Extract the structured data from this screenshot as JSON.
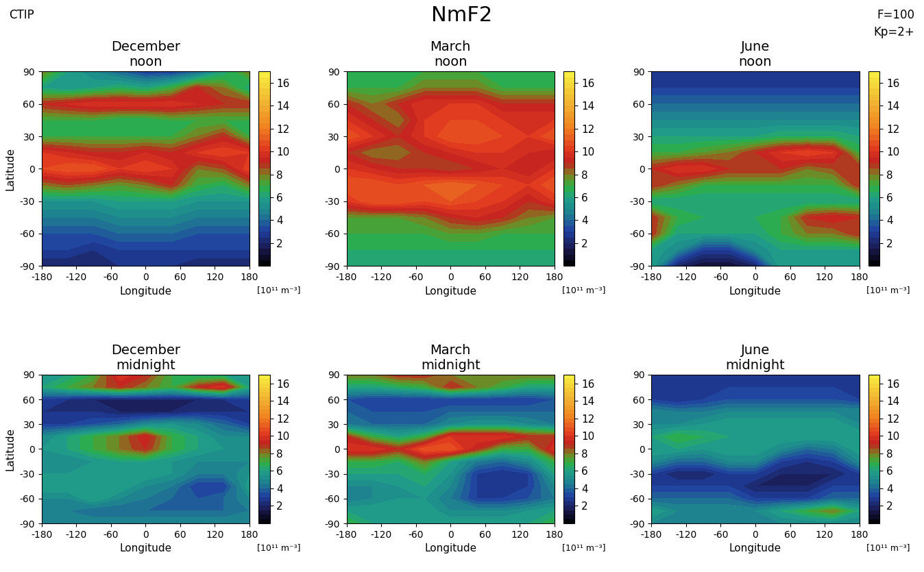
{
  "figure": {
    "title": "NmF2",
    "annotations": [
      "CTIP",
      "F=100",
      "Kp=2+"
    ]
  },
  "chart_data": [
    {
      "type": "contour",
      "title": "December\nnoon",
      "xlabel": "Longitude",
      "ylabel": "Latitude",
      "x": [
        -180,
        -135,
        -90,
        -45,
        0,
        45,
        90,
        135,
        180
      ],
      "y": [
        -90,
        -75,
        -60,
        -45,
        -30,
        -15,
        0,
        15,
        30,
        45,
        60,
        75,
        90
      ],
      "cells": [
        [
          2,
          2,
          2,
          2.5,
          2.5,
          2.5,
          2,
          2,
          2
        ],
        [
          3,
          3,
          2.5,
          3,
          3,
          3,
          3,
          3,
          3
        ],
        [
          3.5,
          3.5,
          3.5,
          4,
          4,
          4,
          3.5,
          3.5,
          3.5
        ],
        [
          4.5,
          4.5,
          4.5,
          5,
          5,
          5,
          4.5,
          4.5,
          4.5
        ],
        [
          5.5,
          5.5,
          5.5,
          6,
          6,
          6,
          5.5,
          5.5,
          5.5
        ],
        [
          8,
          8.5,
          8,
          7.5,
          8,
          9,
          7,
          6.5,
          8
        ],
        [
          10.5,
          11,
          11,
          10,
          10.5,
          10,
          8,
          8.5,
          10.5
        ],
        [
          10,
          9.5,
          9,
          9,
          9.5,
          9,
          10,
          10.5,
          10
        ],
        [
          7,
          7,
          7,
          7,
          7,
          7,
          8,
          9,
          7
        ],
        [
          7,
          7,
          7,
          6.5,
          6.5,
          7,
          7,
          7,
          7
        ],
        [
          9,
          9.5,
          10,
          10,
          10,
          10,
          9.5,
          9,
          9
        ],
        [
          6,
          5.5,
          6,
          6.5,
          6,
          7,
          9,
          8,
          6
        ],
        [
          8,
          6,
          5,
          4,
          3,
          3,
          4,
          6,
          8
        ]
      ],
      "xlim": [
        -180,
        180
      ],
      "ylim": [
        -90,
        90
      ],
      "xticks": [
        -180,
        -120,
        -60,
        0,
        60,
        120,
        180
      ],
      "yticks": [
        -90,
        -60,
        -30,
        0,
        30,
        60,
        90
      ],
      "colorbar": {
        "label": "[10¹¹ m⁻³]",
        "range": [
          0,
          17
        ],
        "ticks": [
          2,
          4,
          6,
          8,
          10,
          12,
          14,
          16
        ]
      }
    },
    {
      "type": "contour",
      "title": "March\nnoon",
      "xlabel": "Longitude",
      "x": [
        -180,
        -135,
        -90,
        -45,
        0,
        45,
        90,
        135,
        180
      ],
      "y": [
        -90,
        -75,
        -60,
        -45,
        -30,
        -15,
        0,
        15,
        30,
        45,
        60,
        75,
        90
      ],
      "cells": [
        [
          6,
          6,
          6,
          6,
          6,
          6,
          6,
          6,
          6
        ],
        [
          6.5,
          6.5,
          6.5,
          6.5,
          6.5,
          6.5,
          6.5,
          6.5,
          6.5
        ],
        [
          7,
          7,
          7,
          7,
          7.5,
          7.5,
          7,
          7,
          7
        ],
        [
          7.5,
          7.5,
          7.5,
          8,
          9,
          9.5,
          9,
          8,
          7.5
        ],
        [
          10,
          11,
          11,
          10.5,
          11,
          10.5,
          10,
          9,
          10
        ],
        [
          11,
          11,
          10.5,
          11,
          11.5,
          11,
          10.5,
          10,
          11
        ],
        [
          10,
          9.5,
          9,
          9,
          8.5,
          9,
          9.5,
          9,
          10
        ],
        [
          9,
          8,
          8,
          9,
          9.5,
          10,
          10,
          9.5,
          9
        ],
        [
          11,
          10,
          9,
          10,
          11,
          11,
          10.5,
          10,
          11
        ],
        [
          10,
          9,
          8,
          10,
          10.5,
          10.5,
          10,
          10,
          10
        ],
        [
          9,
          8,
          9,
          10,
          10,
          10,
          9,
          9,
          9
        ],
        [
          7,
          7,
          7,
          8,
          8,
          8,
          7,
          7,
          7
        ],
        [
          7,
          7,
          7,
          7,
          7,
          7,
          7,
          7,
          7
        ]
      ],
      "xlim": [
        -180,
        180
      ],
      "ylim": [
        -90,
        90
      ],
      "xticks": [
        -180,
        -120,
        -60,
        0,
        60,
        120,
        180
      ],
      "yticks": [
        -90,
        -60,
        -30,
        0,
        30,
        60,
        90
      ],
      "colorbar": {
        "label": "[10¹¹ m⁻³]",
        "range": [
          0,
          17
        ],
        "ticks": [
          2,
          4,
          6,
          8,
          10,
          12,
          14,
          16
        ]
      }
    },
    {
      "type": "contour",
      "title": "June\nnoon",
      "xlabel": "Longitude",
      "x": [
        -180,
        -135,
        -90,
        -45,
        0,
        45,
        90,
        135,
        180
      ],
      "y": [
        -90,
        -75,
        -60,
        -45,
        -30,
        -15,
        0,
        15,
        30,
        45,
        60,
        75,
        90
      ],
      "cells": [
        [
          6,
          2,
          1,
          1,
          2,
          6,
          6,
          6,
          6
        ],
        [
          6,
          5,
          3,
          3,
          5,
          6,
          6,
          6,
          6
        ],
        [
          9,
          6,
          6,
          6,
          6,
          7,
          8,
          8,
          9
        ],
        [
          9,
          7,
          6.5,
          6.5,
          6.5,
          7,
          9,
          9.5,
          9
        ],
        [
          6,
          6,
          6,
          6,
          6,
          6,
          6,
          6,
          6
        ],
        [
          9,
          8,
          7,
          7,
          7,
          7,
          7,
          7,
          9
        ],
        [
          9,
          10,
          10,
          9,
          9,
          9,
          8,
          8.5,
          9
        ],
        [
          7,
          7,
          7.5,
          8,
          9,
          10,
          10.5,
          10,
          7
        ],
        [
          6,
          6,
          6,
          6,
          6,
          6.5,
          6.5,
          6.5,
          6
        ],
        [
          5,
          5,
          5,
          5,
          5,
          5,
          5,
          5,
          5
        ],
        [
          4,
          4,
          4,
          4,
          4,
          4,
          4,
          4,
          4
        ],
        [
          3,
          3,
          3,
          3,
          3,
          3,
          3,
          3,
          3
        ],
        [
          2.5,
          2.5,
          2.5,
          2.5,
          2.5,
          2.5,
          2.5,
          2.5,
          2.5
        ]
      ],
      "xlim": [
        -180,
        180
      ],
      "ylim": [
        -90,
        90
      ],
      "xticks": [
        -180,
        -120,
        -60,
        0,
        60,
        120,
        180
      ],
      "yticks": [
        -90,
        -60,
        -30,
        0,
        30,
        60,
        90
      ],
      "colorbar": {
        "label": "[10¹¹ m⁻³]",
        "range": [
          0,
          17
        ],
        "ticks": [
          2,
          4,
          6,
          8,
          10,
          12,
          14,
          16
        ]
      }
    },
    {
      "type": "contour",
      "title": "December\nmidnight",
      "xlabel": "Longitude",
      "ylabel": "Latitude",
      "x": [
        -180,
        -135,
        -90,
        -45,
        0,
        45,
        90,
        135,
        180
      ],
      "y": [
        -90,
        -75,
        -60,
        -45,
        -30,
        -15,
        0,
        15,
        30,
        45,
        60,
        75,
        90
      ],
      "cells": [
        [
          5,
          5,
          5,
          5,
          5,
          5,
          5,
          5,
          5
        ],
        [
          4.5,
          4.5,
          4,
          4,
          4,
          4,
          4,
          4,
          4.5
        ],
        [
          5,
          5,
          6,
          5,
          4.5,
          4,
          3.5,
          4,
          5
        ],
        [
          6,
          6,
          6,
          6,
          5,
          4.5,
          3,
          3,
          6
        ],
        [
          5.5,
          5.5,
          6,
          6,
          6,
          5.5,
          4.5,
          4.5,
          5.5
        ],
        [
          5,
          5,
          5.5,
          6,
          6,
          5.5,
          5,
          5,
          5
        ],
        [
          5.5,
          6,
          7,
          8,
          9,
          7,
          6,
          5.5,
          5.5
        ],
        [
          5,
          6,
          7,
          8,
          9.5,
          7,
          6,
          5,
          5
        ],
        [
          3,
          3,
          3.5,
          4,
          5,
          5.5,
          5,
          4,
          3
        ],
        [
          2.5,
          2.5,
          2.5,
          2,
          2,
          2,
          2.5,
          2.5,
          2.5
        ],
        [
          3,
          2.5,
          2,
          2,
          2,
          2,
          2,
          2.5,
          3
        ],
        [
          6,
          7,
          8,
          9,
          8,
          7,
          9,
          10,
          6
        ],
        [
          6,
          6,
          7,
          10,
          9,
          7,
          6,
          6,
          6
        ]
      ],
      "xlim": [
        -180,
        180
      ],
      "ylim": [
        -90,
        90
      ],
      "xticks": [
        -180,
        -120,
        -60,
        0,
        60,
        120,
        180
      ],
      "yticks": [
        -90,
        -60,
        -30,
        0,
        30,
        60,
        90
      ],
      "colorbar": {
        "label": "[10¹¹ m⁻³]",
        "range": [
          0,
          17
        ],
        "ticks": [
          2,
          4,
          6,
          8,
          10,
          12,
          14,
          16
        ]
      }
    },
    {
      "type": "contour",
      "title": "March\nmidnight",
      "xlabel": "Longitude",
      "x": [
        -180,
        -135,
        -90,
        -45,
        0,
        45,
        90,
        135,
        180
      ],
      "y": [
        -90,
        -75,
        -60,
        -45,
        -30,
        -15,
        0,
        15,
        30,
        45,
        60,
        75,
        90
      ],
      "cells": [
        [
          7,
          6,
          6,
          6,
          6,
          6,
          6,
          6,
          7
        ],
        [
          6,
          6,
          6,
          6,
          5,
          5,
          5,
          5.5,
          6
        ],
        [
          4.5,
          5,
          5.5,
          5.5,
          4.5,
          3,
          3,
          3.5,
          4.5
        ],
        [
          5,
          5,
          5.5,
          6,
          5,
          3,
          2.5,
          3,
          5
        ],
        [
          6,
          6,
          6,
          6.5,
          5.5,
          3,
          2.5,
          3,
          6
        ],
        [
          7,
          7,
          6.5,
          8,
          6,
          4.5,
          4,
          5,
          7
        ],
        [
          10,
          10,
          9,
          11,
          11,
          9,
          7,
          7,
          10
        ],
        [
          9,
          7,
          6,
          7,
          10,
          10,
          10,
          9,
          9
        ],
        [
          4.5,
          4,
          4,
          4,
          5,
          5.5,
          5.5,
          5,
          4.5
        ],
        [
          4,
          3.5,
          3.5,
          3.5,
          4,
          4,
          4,
          4,
          4
        ],
        [
          3.5,
          3,
          3,
          3,
          3,
          3,
          3,
          3,
          3.5
        ],
        [
          6,
          6,
          6.5,
          7,
          9,
          8,
          7,
          6,
          6
        ],
        [
          8,
          8,
          9,
          9,
          8,
          8,
          8,
          8,
          8
        ]
      ],
      "xlim": [
        -180,
        180
      ],
      "ylim": [
        -90,
        90
      ],
      "xticks": [
        -180,
        -120,
        -60,
        0,
        60,
        120,
        180
      ],
      "yticks": [
        -90,
        -60,
        -30,
        0,
        30,
        60,
        90
      ],
      "colorbar": {
        "label": "[10¹¹ m⁻³]",
        "range": [
          0,
          17
        ],
        "ticks": [
          2,
          4,
          6,
          8,
          10,
          12,
          14,
          16
        ]
      }
    },
    {
      "type": "contour",
      "title": "June\nmidnight",
      "xlabel": "Longitude",
      "x": [
        -180,
        -135,
        -90,
        -45,
        0,
        45,
        90,
        135,
        180
      ],
      "y": [
        -90,
        -75,
        -60,
        -45,
        -30,
        -15,
        0,
        15,
        30,
        45,
        60,
        75,
        90
      ],
      "cells": [
        [
          5,
          5,
          5,
          5,
          5,
          5,
          5,
          5,
          5
        ],
        [
          6,
          5,
          5,
          5,
          5,
          6,
          7,
          8,
          6
        ],
        [
          4,
          4,
          4,
          4,
          3,
          3,
          3,
          4,
          4
        ],
        [
          3,
          3,
          3,
          3,
          2,
          2,
          2,
          3,
          3
        ],
        [
          3,
          2,
          2,
          3,
          3,
          2,
          2,
          2,
          3
        ],
        [
          5,
          4,
          4,
          5,
          5,
          3,
          2.5,
          3,
          5
        ],
        [
          6,
          6,
          5.5,
          6,
          6,
          5,
          4,
          4.5,
          6
        ],
        [
          6,
          7,
          6.5,
          6,
          6,
          6,
          6,
          6,
          6
        ],
        [
          5,
          5,
          5.5,
          6,
          6,
          6,
          6,
          6,
          5
        ],
        [
          5,
          4.5,
          4.5,
          5,
          5,
          5,
          5,
          5,
          5
        ],
        [
          3,
          2.5,
          3,
          3.5,
          3.5,
          3.5,
          3.5,
          3.5,
          3
        ],
        [
          3,
          3,
          3,
          3,
          3,
          3,
          3,
          3,
          3
        ],
        [
          2.5,
          2.5,
          2.5,
          2.5,
          2.5,
          2.5,
          2.5,
          2.5,
          2.5
        ]
      ],
      "xlim": [
        -180,
        180
      ],
      "ylim": [
        -90,
        90
      ],
      "xticks": [
        -180,
        -120,
        -60,
        0,
        60,
        120,
        180
      ],
      "yticks": [
        -90,
        -60,
        -30,
        0,
        30,
        60,
        90
      ],
      "colorbar": {
        "label": "[10¹¹ m⁻³]",
        "range": [
          0,
          17
        ],
        "ticks": [
          2,
          4,
          6,
          8,
          10,
          12,
          14,
          16
        ]
      }
    }
  ]
}
